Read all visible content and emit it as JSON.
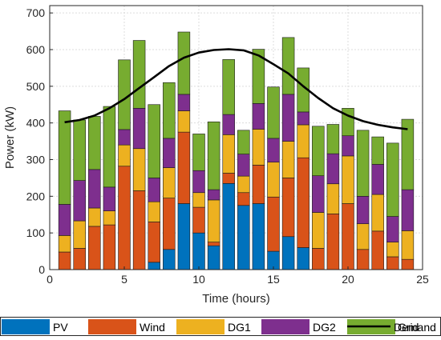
{
  "chart_data": {
    "type": "bar",
    "stacked": true,
    "xlabel": "Time (hours)",
    "ylabel": "Power (kW)",
    "xlim": [
      0,
      25
    ],
    "ylim": [
      0,
      720
    ],
    "xticks": [
      0,
      5,
      10,
      15,
      20,
      25
    ],
    "yticks": [
      0,
      100,
      200,
      300,
      400,
      500,
      600,
      700
    ],
    "grid": true,
    "legend_position": "bottom",
    "categories": [
      1,
      2,
      3,
      4,
      5,
      6,
      7,
      8,
      9,
      10,
      11,
      12,
      13,
      14,
      15,
      16,
      17,
      18,
      19,
      20,
      21,
      22,
      23,
      24
    ],
    "series": [
      {
        "name": "PV",
        "color": "#0072BD",
        "values": [
          0,
          0,
          0,
          0,
          0,
          0,
          20,
          55,
          180,
          100,
          65,
          235,
          175,
          180,
          50,
          90,
          60,
          0,
          0,
          0,
          0,
          0,
          0,
          0
        ]
      },
      {
        "name": "Wind",
        "color": "#D95319",
        "values": [
          48,
          58,
          118,
          122,
          282,
          215,
          110,
          140,
          195,
          70,
          10,
          28,
          35,
          105,
          148,
          160,
          245,
          58,
          152,
          180,
          55,
          105,
          35,
          28
        ]
      },
      {
        "name": "DG1",
        "color": "#EDB120",
        "values": [
          45,
          75,
          50,
          38,
          58,
          115,
          55,
          83,
          58,
          40,
          115,
          105,
          45,
          98,
          95,
          100,
          90,
          98,
          82,
          130,
          70,
          100,
          40,
          78
        ]
      },
      {
        "name": "DG2",
        "color": "#7E2F8E",
        "values": [
          85,
          110,
          105,
          65,
          42,
          110,
          65,
          80,
          45,
          60,
          28,
          55,
          60,
          70,
          65,
          128,
          35,
          100,
          82,
          55,
          75,
          82,
          70,
          112
        ]
      },
      {
        "name": "Grid",
        "color": "#77AC30",
        "values": [
          255,
          165,
          145,
          220,
          190,
          185,
          200,
          152,
          170,
          100,
          185,
          150,
          65,
          148,
          140,
          155,
          120,
          135,
          80,
          75,
          180,
          75,
          200,
          192
        ]
      }
    ],
    "line_series": [
      {
        "name": "Demand",
        "color": "#000000",
        "x": [
          1,
          2,
          3,
          4,
          5,
          6,
          7,
          8,
          9,
          10,
          11,
          12,
          13,
          14,
          15,
          16,
          17,
          18,
          19,
          20,
          21,
          22,
          23,
          24
        ],
        "values": [
          402,
          408,
          420,
          440,
          465,
          495,
          525,
          555,
          578,
          592,
          599,
          601,
          598,
          584,
          560,
          535,
          500,
          468,
          440,
          420,
          405,
          395,
          388,
          383
        ]
      }
    ]
  }
}
